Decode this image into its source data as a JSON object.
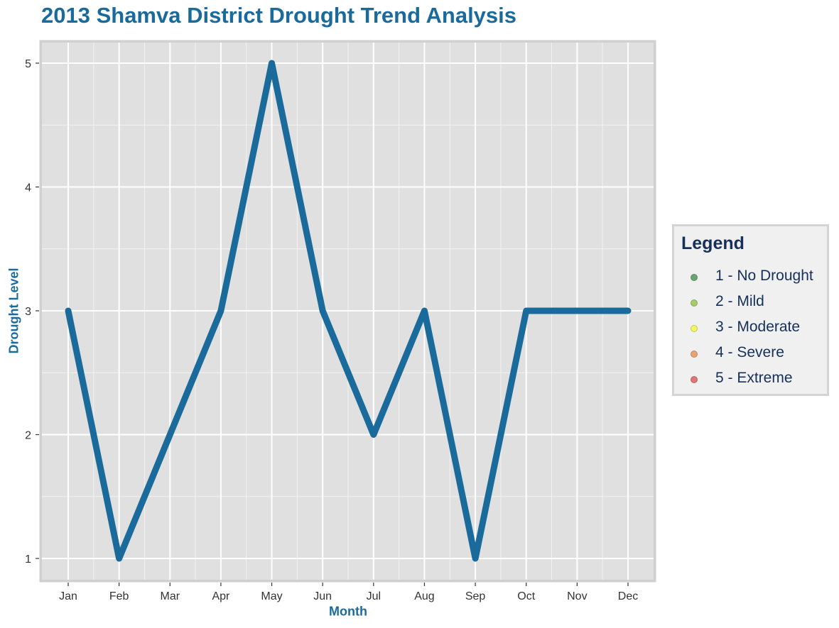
{
  "chart_data": {
    "type": "line",
    "title": "2013 Shamva District Drought Trend Analysis",
    "xlabel": "Month",
    "ylabel": "Drought Level",
    "categories": [
      "Jan",
      "Feb",
      "Mar",
      "Apr",
      "May",
      "Jun",
      "Jul",
      "Aug",
      "Sep",
      "Oct",
      "Nov",
      "Dec"
    ],
    "series": [
      {
        "values": [
          3,
          1,
          2,
          3,
          5,
          3,
          2,
          3,
          1,
          3,
          3,
          3
        ],
        "color": "#1a6b9c"
      }
    ],
    "ylim": [
      1,
      5
    ],
    "yticks": [
      1,
      2,
      3,
      4,
      5
    ],
    "grid": true,
    "legend_position": "right",
    "legend": {
      "title": "Legend",
      "items": [
        {
          "label": "1 - No Drought",
          "color": "#3f8a4c"
        },
        {
          "label": "2 - Mild",
          "color": "#8fbe3e"
        },
        {
          "label": "3 - Moderate",
          "color": "#f6f636"
        },
        {
          "label": "4 - Severe",
          "color": "#ea8a4a"
        },
        {
          "label": "5 - Extreme",
          "color": "#da4c4c"
        }
      ]
    }
  }
}
